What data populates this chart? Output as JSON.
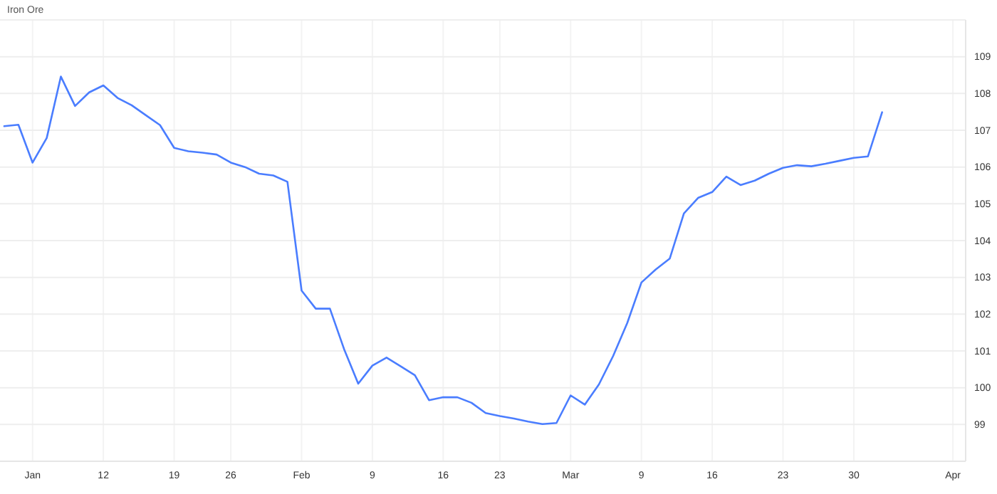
{
  "chart_data": {
    "type": "line",
    "title": "Iron Ore",
    "categories": [
      null,
      null,
      "Jan",
      null,
      null,
      null,
      null,
      "12",
      null,
      null,
      null,
      null,
      "19",
      null,
      null,
      null,
      "26",
      null,
      null,
      null,
      null,
      "Feb",
      null,
      null,
      null,
      null,
      "9",
      null,
      null,
      null,
      null,
      "16",
      null,
      null,
      null,
      "23",
      null,
      null,
      null,
      null,
      "Mar",
      null,
      null,
      null,
      null,
      "9",
      null,
      null,
      null,
      null,
      "16",
      null,
      null,
      null,
      null,
      "23",
      null,
      null,
      null,
      null,
      "30",
      null,
      null,
      null,
      null,
      null,
      null,
      "Apr"
    ],
    "series": [
      {
        "color": "#4a7dff",
        "values": [
          107.11,
          107.15,
          106.12,
          106.79,
          108.46,
          107.66,
          108.03,
          108.22,
          107.88,
          107.68,
          107.41,
          107.14,
          106.52,
          106.43,
          106.39,
          106.34,
          106.12,
          106.0,
          105.82,
          105.77,
          105.6,
          102.64,
          102.15,
          102.15,
          101.05,
          100.11,
          100.6,
          100.82,
          100.58,
          100.34,
          99.66,
          99.74,
          99.74,
          99.59,
          99.31,
          99.23,
          99.16,
          99.08,
          99.01,
          99.04,
          99.79,
          99.54,
          100.09,
          100.86,
          101.76,
          102.86,
          103.21,
          103.51,
          104.74,
          105.16,
          105.32,
          105.74,
          105.51,
          105.63,
          105.82,
          105.98,
          106.05,
          106.02,
          106.09,
          106.17,
          106.25,
          106.29,
          107.49,
          null,
          null,
          null,
          null,
          null
        ]
      }
    ],
    "ylim": [
      98,
      110
    ],
    "yticks": [
      99,
      100,
      101,
      102,
      103,
      104,
      105,
      106,
      107,
      108,
      109
    ],
    "grid": true,
    "marker": "none",
    "line_style": "solid"
  }
}
